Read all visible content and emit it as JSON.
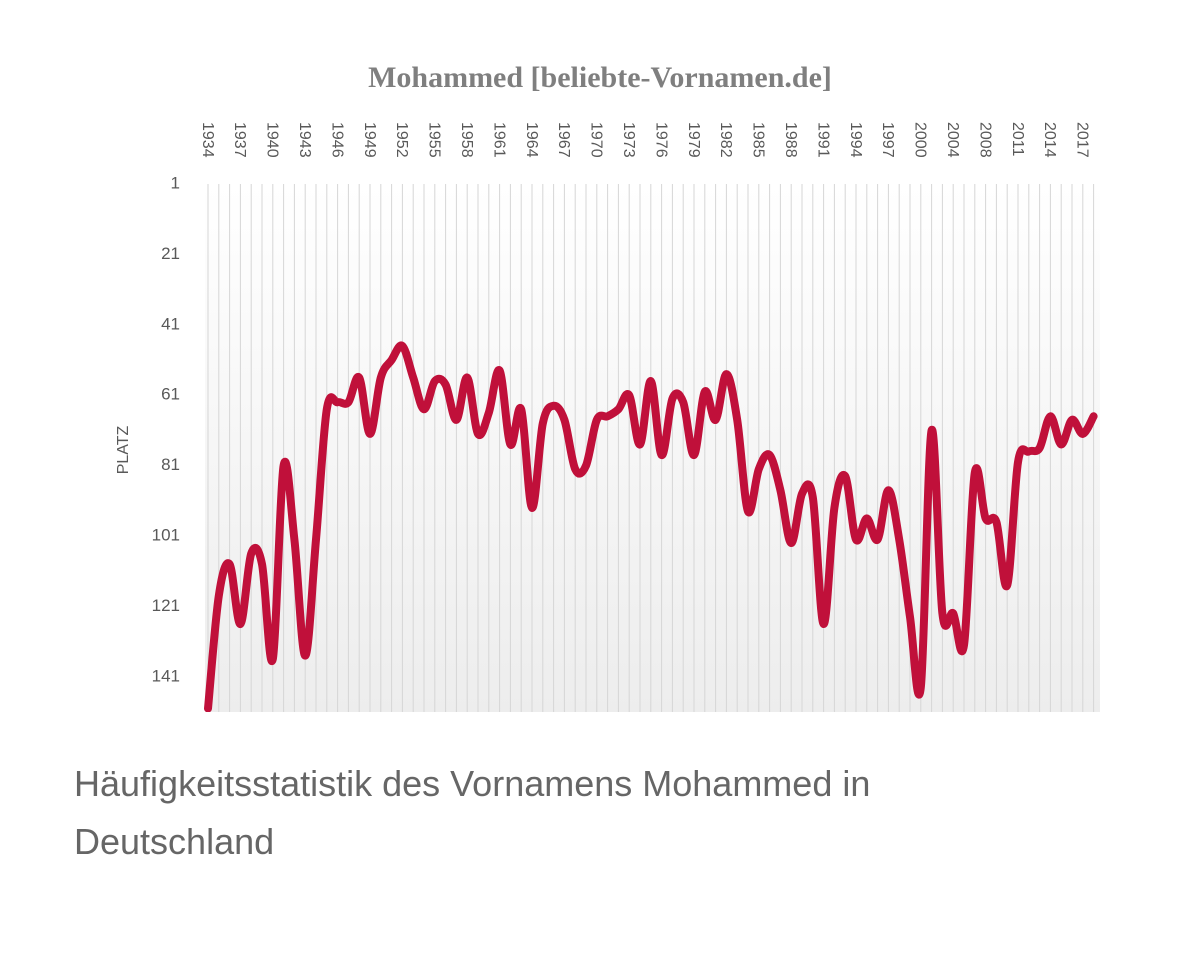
{
  "chart_data": {
    "type": "line",
    "title": "Mohammed [beliebte-Vornamen.de]",
    "y_label": "PLATZ",
    "categories": [
      "1934",
      null,
      null,
      "1937",
      null,
      null,
      "1940",
      null,
      null,
      "1943",
      null,
      null,
      "1946",
      null,
      null,
      "1949",
      null,
      null,
      "1952",
      null,
      null,
      "1955",
      null,
      null,
      "1958",
      null,
      null,
      "1961",
      null,
      null,
      "1964",
      null,
      null,
      "1967",
      null,
      null,
      "1970",
      null,
      null,
      "1973",
      null,
      null,
      "1976",
      null,
      null,
      "1979",
      null,
      null,
      "1982",
      null,
      null,
      "1985",
      null,
      null,
      "1988",
      null,
      null,
      "1991",
      null,
      null,
      "1994",
      null,
      null,
      "1997",
      null,
      null,
      "2000",
      null,
      null,
      "2004",
      null,
      null,
      "2008",
      null,
      null,
      "2011",
      null,
      null,
      "2014",
      null,
      null,
      "2017",
      null
    ],
    "series": [
      {
        "name": "Mohammed",
        "color": "#c0103a",
        "values": [
          150,
          118,
          109,
          126,
          106,
          109,
          136,
          81,
          102,
          135,
          102,
          65,
          63,
          63,
          56,
          72,
          56,
          51,
          47,
          56,
          65,
          57,
          58,
          68,
          56,
          72,
          66,
          54,
          75,
          65,
          93,
          69,
          64,
          68,
          82,
          81,
          68,
          67,
          65,
          61,
          75,
          57,
          78,
          62,
          63,
          78,
          60,
          68,
          55,
          68,
          94,
          82,
          78,
          88,
          103,
          89,
          90,
          126,
          93,
          84,
          102,
          96,
          102,
          88,
          102,
          124,
          144,
          71,
          123,
          123,
          132,
          83,
          96,
          97,
          115,
          80,
          77,
          76,
          67,
          75,
          68,
          72,
          67
        ]
      }
    ],
    "ylim": [
      1,
      151
    ],
    "y_inverted": true,
    "yticks": [
      1,
      21,
      41,
      61,
      81,
      101,
      121,
      141
    ],
    "grid": true
  },
  "caption": "Häufigkeitsstatistik des Vornamens Mohammed in Deutschland"
}
